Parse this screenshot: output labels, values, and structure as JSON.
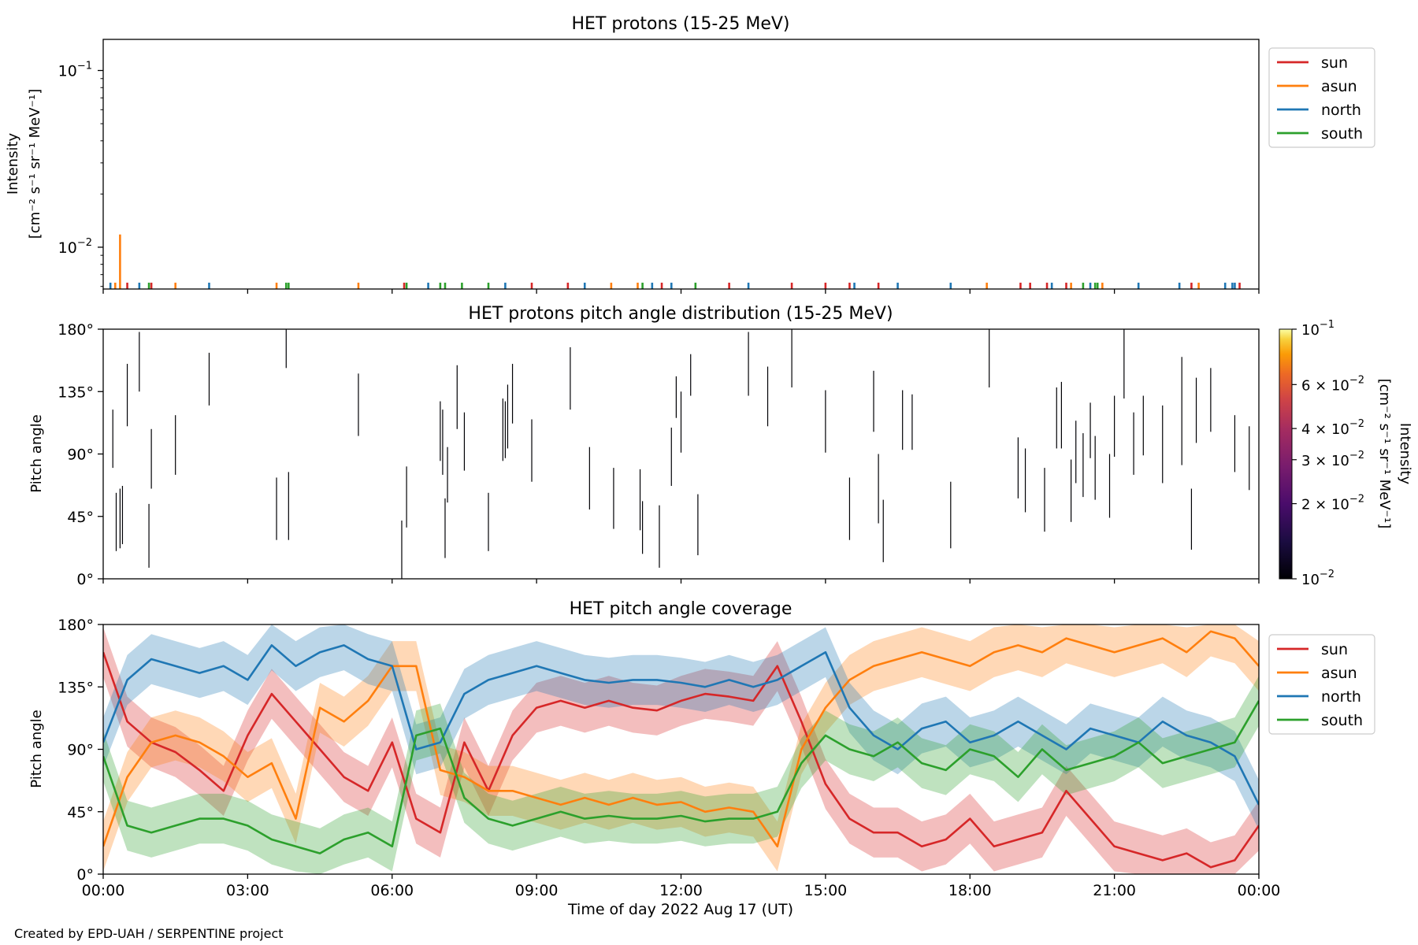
{
  "footer": "Created by EPD-UAH / SERPENTINE project",
  "colors": {
    "sun": "#d62728",
    "asun": "#ff7f0e",
    "north": "#1f77b4",
    "south": "#2ca02c"
  },
  "time_axis": {
    "label": "Time of day 2022 Aug 17 (UT)",
    "ticks": [
      "00:00",
      "03:00",
      "06:00",
      "09:00",
      "12:00",
      "15:00",
      "18:00",
      "21:00",
      "00:00"
    ],
    "range_hours": [
      0,
      24
    ]
  },
  "chart_data": [
    {
      "type": "bar",
      "title": "HET protons (15-25 MeV)",
      "ylabel_line1": "Intensity",
      "ylabel_line2": "[cm⁻² s⁻¹ sr⁻¹ MeV⁻¹]",
      "yscale": "log",
      "ylim": [
        0.0058,
        0.15
      ],
      "yticks": [
        {
          "value": 0.1,
          "mantissa": "10",
          "exp": "−1"
        },
        {
          "value": 0.01,
          "mantissa": "10",
          "exp": "−2"
        }
      ],
      "legend_position": "outside-right",
      "legend": [
        "sun",
        "asun",
        "north",
        "south"
      ],
      "series": [
        {
          "name": "sun",
          "x": [
            0.5,
            1.0,
            6.25,
            8.9,
            9.65,
            11.6,
            13.0,
            14.3,
            15.0,
            15.5,
            16.1,
            19.05,
            19.25,
            19.6,
            20.0,
            22.6,
            23.6
          ],
          "values": [
            0.0063,
            0.0063,
            0.0063,
            0.0063,
            0.0063,
            0.0063,
            0.0063,
            0.0063,
            0.0063,
            0.0063,
            0.0063,
            0.0063,
            0.0063,
            0.0063,
            0.0063,
            0.0063,
            0.0063
          ]
        },
        {
          "name": "asun",
          "x": [
            0.25,
            0.35,
            1.5,
            3.6,
            5.3,
            10.55,
            11.1,
            18.35,
            20.1,
            20.75,
            22.75
          ],
          "values": [
            0.0063,
            0.0118,
            0.0063,
            0.0063,
            0.0063,
            0.0063,
            0.0063,
            0.0063,
            0.0063,
            0.0063,
            0.0063
          ]
        },
        {
          "name": "north",
          "x": [
            0.15,
            0.75,
            2.2,
            6.75,
            8.35,
            10.0,
            11.4,
            11.8,
            13.4,
            15.6,
            16.5,
            17.6,
            19.7,
            20.5,
            21.5,
            22.35,
            23.3,
            23.45,
            23.5
          ],
          "values": [
            0.0063,
            0.0063,
            0.0063,
            0.0063,
            0.0063,
            0.0063,
            0.0063,
            0.0063,
            0.0063,
            0.0063,
            0.0063,
            0.0063,
            0.0063,
            0.0063,
            0.0063,
            0.0063,
            0.0063,
            0.0063,
            0.0063
          ]
        },
        {
          "name": "south",
          "x": [
            0.95,
            3.8,
            3.85,
            6.3,
            7.0,
            7.1,
            7.45,
            8.0,
            11.2,
            12.3,
            20.35,
            20.6,
            20.65
          ],
          "values": [
            0.0063,
            0.0063,
            0.0063,
            0.0063,
            0.0063,
            0.0063,
            0.0063,
            0.0063,
            0.0063,
            0.0063,
            0.0063,
            0.0063,
            0.0063
          ]
        }
      ]
    },
    {
      "type": "heatmap",
      "title": "HET protons pitch angle distribution (15-25 MeV)",
      "ylabel": "Pitch angle",
      "ylim": [
        0,
        180
      ],
      "yticks": [
        "0°",
        "45°",
        "90°",
        "135°",
        "180°"
      ],
      "colorbar": {
        "label_line1": "Intensity",
        "label_line2": "[cm⁻² s⁻¹ sr⁻¹ MeV⁻¹]",
        "scale": "log",
        "range": [
          0.01,
          0.1
        ],
        "ticks": [
          {
            "value": 0.1,
            "text": "10",
            "exp": "−1"
          },
          {
            "value": 0.06,
            "text": "6 × 10",
            "exp": "−2"
          },
          {
            "value": 0.04,
            "text": "4 × 10",
            "exp": "−2"
          },
          {
            "value": 0.03,
            "text": "3 × 10",
            "exp": "−2"
          },
          {
            "value": 0.02,
            "text": "2 × 10",
            "exp": "−2"
          },
          {
            "value": 0.01,
            "text": "10",
            "exp": "−2"
          }
        ]
      },
      "segments": [
        [
          0.2,
          80,
          122
        ],
        [
          0.27,
          20,
          62
        ],
        [
          0.35,
          22,
          65
        ],
        [
          0.4,
          25,
          67
        ],
        [
          0.5,
          110,
          155
        ],
        [
          0.75,
          135,
          178
        ],
        [
          0.95,
          8,
          54
        ],
        [
          1.0,
          65,
          108
        ],
        [
          1.5,
          75,
          118
        ],
        [
          2.2,
          125,
          163
        ],
        [
          3.6,
          28,
          73
        ],
        [
          3.8,
          152,
          180
        ],
        [
          3.85,
          28,
          77
        ],
        [
          5.3,
          103,
          148
        ],
        [
          6.2,
          0,
          42
        ],
        [
          6.3,
          37,
          81
        ],
        [
          7.0,
          85,
          128
        ],
        [
          7.05,
          75,
          122
        ],
        [
          7.1,
          15,
          58
        ],
        [
          7.15,
          55,
          95
        ],
        [
          7.35,
          108,
          154
        ],
        [
          7.5,
          78,
          120
        ],
        [
          8.0,
          20,
          62
        ],
        [
          8.3,
          85,
          130
        ],
        [
          8.35,
          87,
          128
        ],
        [
          8.4,
          94,
          140
        ],
        [
          8.5,
          112,
          155
        ],
        [
          8.9,
          70,
          115
        ],
        [
          9.7,
          122,
          167
        ],
        [
          10.1,
          50,
          95
        ],
        [
          10.6,
          36,
          80
        ],
        [
          11.15,
          35,
          79
        ],
        [
          11.2,
          18,
          56
        ],
        [
          11.55,
          8,
          53
        ],
        [
          11.8,
          67,
          109
        ],
        [
          11.9,
          116,
          146
        ],
        [
          12.0,
          91,
          135
        ],
        [
          12.2,
          132,
          162
        ],
        [
          12.35,
          17,
          61
        ],
        [
          13.4,
          132,
          178
        ],
        [
          13.8,
          110,
          153
        ],
        [
          14.3,
          138,
          180
        ],
        [
          15.0,
          91,
          136
        ],
        [
          15.5,
          28,
          73
        ],
        [
          16.0,
          106,
          150
        ],
        [
          16.1,
          40,
          90
        ],
        [
          16.2,
          12,
          57
        ],
        [
          16.6,
          93,
          136
        ],
        [
          16.8,
          93,
          133
        ],
        [
          17.6,
          22,
          70
        ],
        [
          18.4,
          138,
          180
        ],
        [
          19.0,
          58,
          102
        ],
        [
          19.15,
          48,
          94
        ],
        [
          19.55,
          34,
          80
        ],
        [
          19.8,
          94,
          138
        ],
        [
          19.9,
          94,
          142
        ],
        [
          20.1,
          41,
          86
        ],
        [
          20.2,
          69,
          114
        ],
        [
          20.35,
          59,
          105
        ],
        [
          20.5,
          87,
          127
        ],
        [
          20.6,
          57,
          103
        ],
        [
          20.9,
          44,
          90
        ],
        [
          21.0,
          88,
          132
        ],
        [
          21.2,
          130,
          180
        ],
        [
          21.4,
          75,
          120
        ],
        [
          21.6,
          89,
          132
        ],
        [
          22.0,
          69,
          125
        ],
        [
          22.4,
          82,
          160
        ],
        [
          22.6,
          21,
          65
        ],
        [
          22.7,
          98,
          145
        ],
        [
          23.0,
          106,
          152
        ],
        [
          23.5,
          77,
          118
        ],
        [
          23.8,
          64,
          110
        ]
      ]
    },
    {
      "type": "area",
      "title": "HET pitch angle coverage",
      "ylabel": "Pitch angle",
      "ylim": [
        0,
        180
      ],
      "yticks": [
        "0°",
        "45°",
        "90°",
        "135°",
        "180°"
      ],
      "legend_position": "outside-right",
      "legend": [
        "sun",
        "asun",
        "north",
        "south"
      ],
      "band_halfwidth_deg": 18,
      "series": [
        {
          "name": "sun",
          "x": [
            0,
            0.5,
            1,
            1.5,
            2,
            2.5,
            3,
            3.5,
            4,
            4.5,
            5,
            5.5,
            6,
            6.5,
            7,
            7.5,
            8,
            8.5,
            9,
            9.5,
            10,
            10.5,
            11,
            11.5,
            12,
            12.5,
            13,
            13.5,
            14,
            14.5,
            15,
            15.5,
            16,
            16.5,
            17,
            17.5,
            18,
            18.5,
            19,
            19.5,
            20,
            20.5,
            21,
            21.5,
            22,
            22.5,
            23,
            23.5,
            24
          ],
          "values": [
            160,
            110,
            95,
            88,
            75,
            60,
            100,
            130,
            110,
            90,
            70,
            60,
            95,
            40,
            30,
            95,
            60,
            100,
            120,
            125,
            120,
            125,
            120,
            118,
            125,
            130,
            128,
            125,
            150,
            110,
            65,
            40,
            30,
            30,
            20,
            25,
            40,
            20,
            25,
            30,
            60,
            40,
            20,
            15,
            10,
            15,
            5,
            10,
            35
          ]
        },
        {
          "name": "asun",
          "x": [
            0,
            0.5,
            1,
            1.5,
            2,
            2.5,
            3,
            3.5,
            4,
            4.5,
            5,
            5.5,
            6,
            6.5,
            7,
            7.5,
            8,
            8.5,
            9,
            9.5,
            10,
            10.5,
            11,
            11.5,
            12,
            12.5,
            13,
            13.5,
            14,
            14.5,
            15,
            15.5,
            16,
            16.5,
            17,
            17.5,
            18,
            18.5,
            19,
            19.5,
            20,
            20.5,
            21,
            21.5,
            22,
            22.5,
            23,
            23.5,
            24
          ],
          "values": [
            20,
            70,
            95,
            100,
            95,
            85,
            70,
            80,
            40,
            120,
            110,
            125,
            150,
            150,
            75,
            70,
            60,
            60,
            55,
            50,
            55,
            50,
            55,
            50,
            52,
            45,
            48,
            45,
            20,
            90,
            120,
            140,
            150,
            155,
            160,
            155,
            150,
            160,
            165,
            160,
            170,
            165,
            160,
            165,
            170,
            160,
            175,
            170,
            150
          ]
        },
        {
          "name": "north",
          "x": [
            0,
            0.5,
            1,
            1.5,
            2,
            2.5,
            3,
            3.5,
            4,
            4.5,
            5,
            5.5,
            6,
            6.5,
            7,
            7.5,
            8,
            8.5,
            9,
            9.5,
            10,
            10.5,
            11,
            11.5,
            12,
            12.5,
            13,
            13.5,
            14,
            14.5,
            15,
            15.5,
            16,
            16.5,
            17,
            17.5,
            18,
            18.5,
            19,
            19.5,
            20,
            20.5,
            21,
            21.5,
            22,
            22.5,
            23,
            23.5,
            24
          ],
          "values": [
            95,
            140,
            155,
            150,
            145,
            150,
            140,
            165,
            150,
            160,
            165,
            155,
            150,
            90,
            95,
            130,
            140,
            145,
            150,
            145,
            140,
            138,
            140,
            140,
            138,
            135,
            140,
            135,
            140,
            150,
            160,
            120,
            100,
            90,
            105,
            110,
            95,
            100,
            110,
            100,
            90,
            105,
            100,
            95,
            110,
            100,
            95,
            85,
            50
          ]
        },
        {
          "name": "south",
          "x": [
            0,
            0.5,
            1,
            1.5,
            2,
            2.5,
            3,
            3.5,
            4,
            4.5,
            5,
            5.5,
            6,
            6.5,
            7,
            7.5,
            8,
            8.5,
            9,
            9.5,
            10,
            10.5,
            11,
            11.5,
            12,
            12.5,
            13,
            13.5,
            14,
            14.5,
            15,
            15.5,
            16,
            16.5,
            17,
            17.5,
            18,
            18.5,
            19,
            19.5,
            20,
            20.5,
            21,
            21.5,
            22,
            22.5,
            23,
            23.5,
            24
          ],
          "values": [
            85,
            35,
            30,
            35,
            40,
            40,
            35,
            25,
            20,
            15,
            25,
            30,
            20,
            100,
            105,
            55,
            40,
            35,
            40,
            45,
            40,
            42,
            40,
            40,
            42,
            38,
            40,
            40,
            45,
            80,
            100,
            90,
            85,
            95,
            80,
            75,
            90,
            85,
            70,
            90,
            75,
            80,
            85,
            95,
            80,
            85,
            90,
            95,
            125
          ]
        }
      ]
    }
  ]
}
